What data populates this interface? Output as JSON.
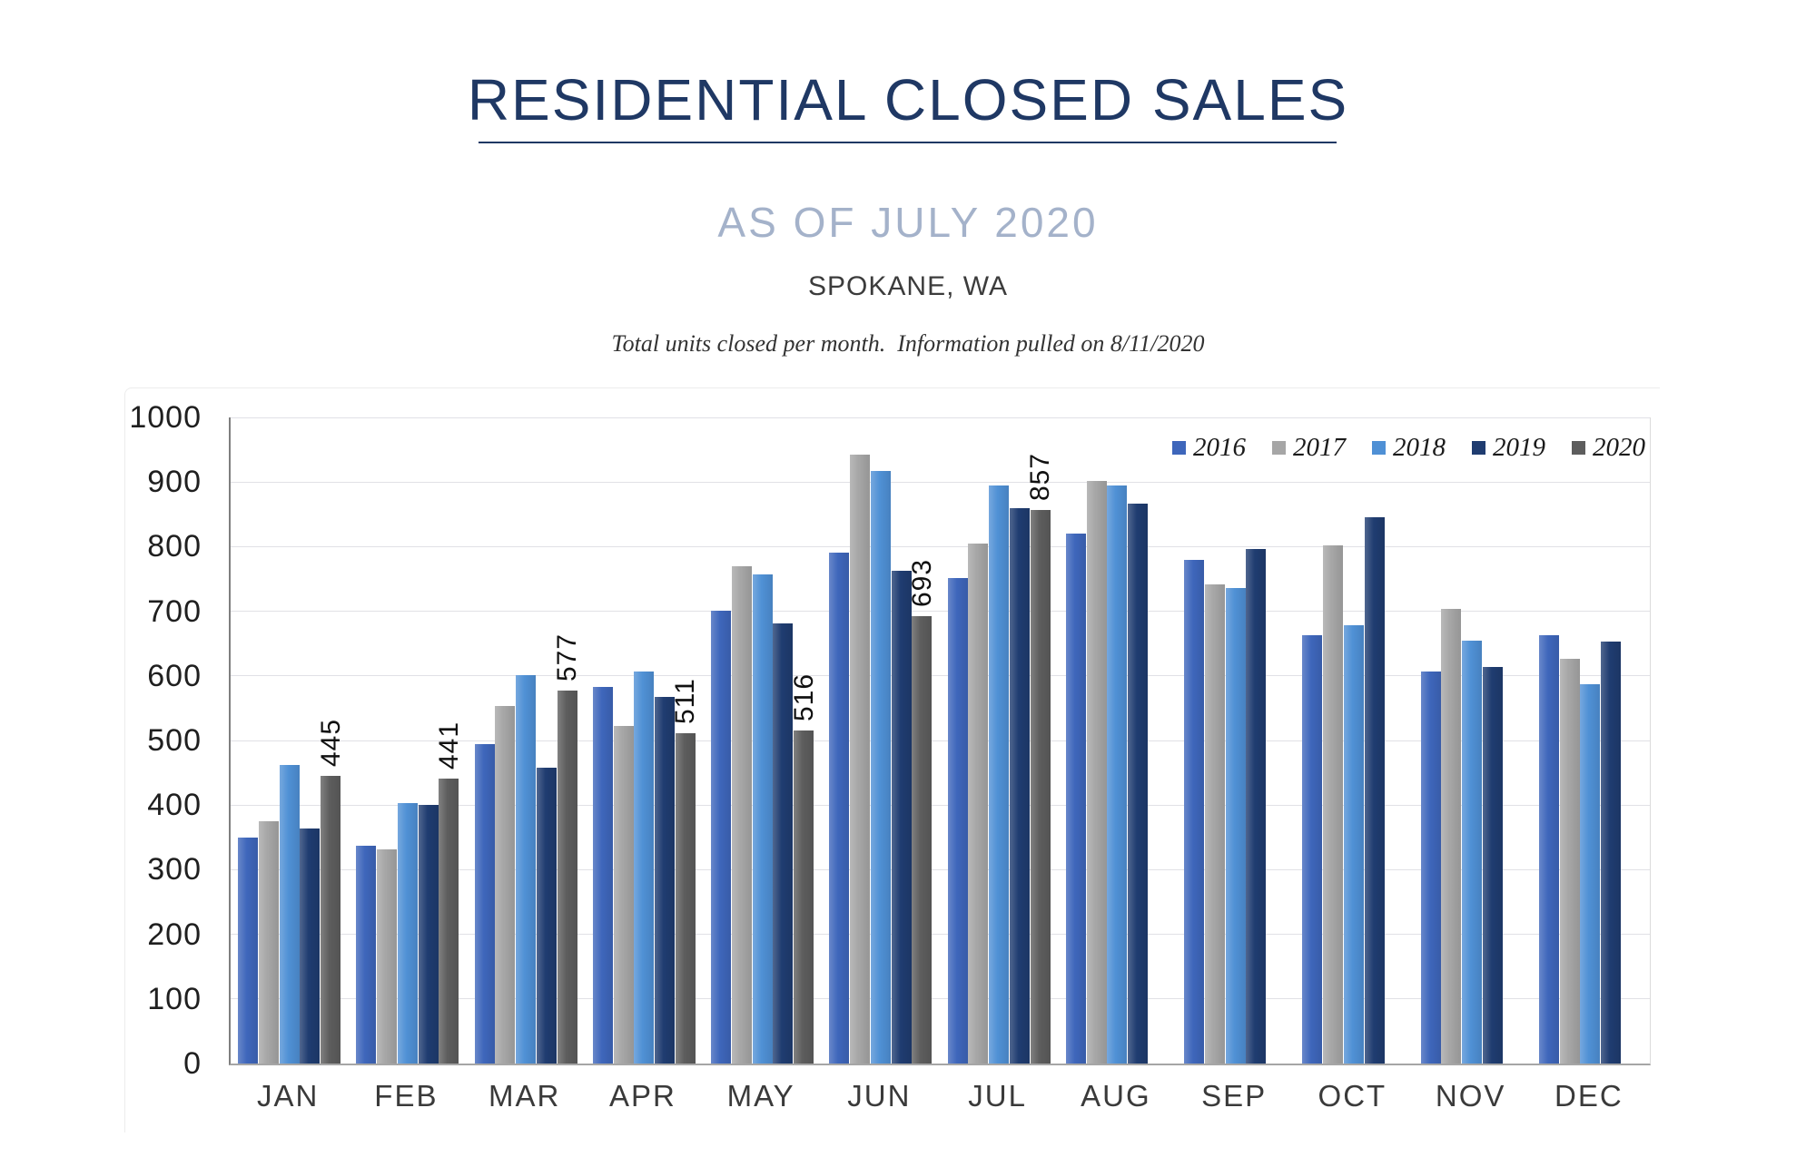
{
  "header": {
    "title": "RESIDENTIAL CLOSED SALES",
    "subtitle": "AS OF JULY 2020",
    "location": "SPOKANE, WA",
    "caption": "Total units closed per month.  Information pulled on 8/11/2020"
  },
  "chart_data": {
    "type": "bar",
    "title": "Residential closed sales per month, Spokane WA",
    "categories": [
      "JAN",
      "FEB",
      "MAR",
      "APR",
      "MAY",
      "JUN",
      "JUL",
      "AUG",
      "SEP",
      "OCT",
      "NOV",
      "DEC"
    ],
    "series": [
      {
        "name": "2016",
        "color": "#3e66bb",
        "values": [
          350,
          337,
          494,
          583,
          701,
          791,
          751,
          820,
          780,
          663,
          607,
          663
        ]
      },
      {
        "name": "2017",
        "color": "#a6a6a6",
        "values": [
          375,
          331,
          553,
          523,
          770,
          943,
          805,
          902,
          742,
          802,
          704,
          626
        ]
      },
      {
        "name": "2018",
        "color": "#4f90d5",
        "values": [
          462,
          403,
          601,
          607,
          757,
          917,
          895,
          895,
          736,
          678,
          654,
          587
        ]
      },
      {
        "name": "2019",
        "color": "#1f3c70",
        "values": [
          364,
          400,
          458,
          567,
          681,
          762,
          860,
          867,
          797,
          845,
          614,
          653
        ]
      },
      {
        "name": "2020",
        "color": "#5d5d5d",
        "values": [
          445,
          441,
          577,
          511,
          516,
          693,
          857,
          null,
          null,
          null,
          null,
          null
        ],
        "data_labels": true
      }
    ],
    "ylim": [
      0,
      1000
    ],
    "ytick_step": 100,
    "grid": true,
    "legend_position": "top-right",
    "xlabel": "",
    "ylabel": ""
  }
}
